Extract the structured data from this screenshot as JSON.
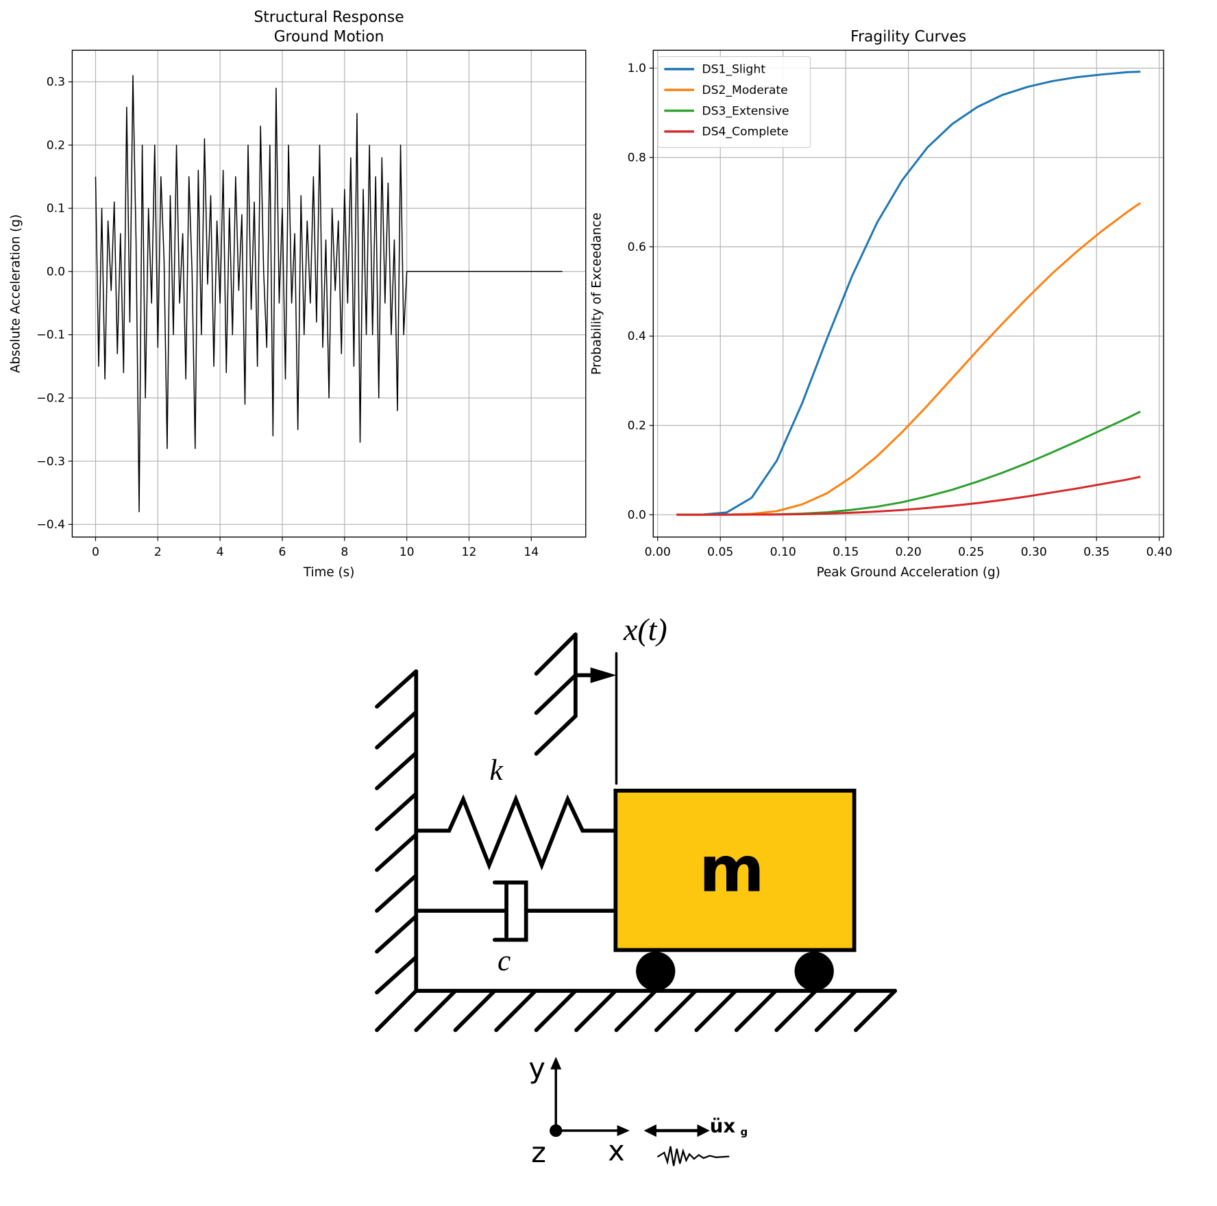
{
  "chart_data": [
    {
      "type": "line",
      "title": "Structural Response",
      "subtitle": "Ground Motion",
      "x_label": "Time (s)",
      "y_label": "Absolute Acceleration (g)",
      "x": [
        0,
        0.1,
        0.2,
        0.3,
        0.4,
        0.5,
        0.6,
        0.7,
        0.8,
        0.9,
        1.0,
        1.1,
        1.2,
        1.3,
        1.4,
        1.5,
        1.6,
        1.7,
        1.8,
        1.9,
        2.0,
        2.1,
        2.2,
        2.3,
        2.4,
        2.5,
        2.6,
        2.7,
        2.8,
        2.9,
        3.0,
        3.1,
        3.2,
        3.3,
        3.4,
        3.5,
        3.6,
        3.7,
        3.8,
        3.9,
        4.0,
        4.1,
        4.2,
        4.3,
        4.4,
        4.5,
        4.6,
        4.7,
        4.8,
        4.9,
        5.0,
        5.1,
        5.2,
        5.3,
        5.4,
        5.5,
        5.6,
        5.7,
        5.8,
        5.9,
        6.0,
        6.1,
        6.2,
        6.3,
        6.4,
        6.5,
        6.6,
        6.7,
        6.8,
        6.9,
        7.0,
        7.1,
        7.2,
        7.3,
        7.4,
        7.5,
        7.6,
        7.7,
        7.8,
        7.9,
        8.0,
        8.1,
        8.2,
        8.3,
        8.4,
        8.5,
        8.6,
        8.7,
        8.8,
        8.9,
        9.0,
        9.1,
        9.2,
        9.3,
        9.4,
        9.5,
        9.6,
        9.7,
        9.8,
        9.9,
        10.0,
        15
      ],
      "series": [
        {
          "color": "#000000",
          "values": [
            0.15,
            -0.15,
            0.1,
            -0.17,
            0.08,
            -0.03,
            0.11,
            -0.13,
            0.06,
            -0.16,
            0.26,
            -0.08,
            0.31,
            0.05,
            -0.38,
            0.2,
            -0.2,
            0.1,
            -0.05,
            0.2,
            -0.12,
            0.15,
            0.02,
            -0.28,
            0.12,
            -0.1,
            0.2,
            -0.05,
            0.06,
            -0.17,
            0.15,
            0.0,
            -0.28,
            0.16,
            -0.1,
            0.21,
            -0.02,
            0.12,
            -0.15,
            0.08,
            -0.05,
            0.16,
            -0.16,
            0.1,
            -0.1,
            0.15,
            -0.03,
            0.09,
            -0.21,
            0.2,
            -0.06,
            0.11,
            -0.15,
            0.23,
            0.0,
            -0.12,
            0.2,
            -0.26,
            0.29,
            -0.05,
            0.1,
            -0.17,
            0.2,
            -0.05,
            0.06,
            -0.25,
            0.12,
            -0.1,
            0.08,
            -0.05,
            0.15,
            -0.08,
            0.2,
            -0.12,
            0.05,
            -0.2,
            0.1,
            -0.03,
            0.08,
            -0.13,
            0.13,
            -0.05,
            0.18,
            -0.15,
            0.25,
            -0.27,
            0.13,
            -0.1,
            0.2,
            -0.1,
            0.15,
            -0.2,
            0.18,
            -0.05,
            0.14,
            -0.1,
            0.05,
            -0.22,
            0.2,
            -0.1,
            0.0,
            0.0
          ]
        }
      ],
      "xlim": [
        -0.75,
        15.75
      ],
      "ylim": [
        -0.42,
        0.35
      ],
      "xticks": [
        0,
        2,
        4,
        6,
        8,
        10,
        12,
        14
      ],
      "yticks": [
        {
          "value": -0.4,
          "label": "−0.4"
        },
        {
          "value": -0.3,
          "label": "−0.3"
        },
        {
          "value": -0.2,
          "label": "−0.2"
        },
        {
          "value": -0.1,
          "label": "−0.1"
        },
        {
          "value": 0,
          "label": "0.0"
        },
        0.1,
        0.2,
        0.3
      ],
      "grid": true
    },
    {
      "type": "line",
      "title": "Fragility Curves",
      "x_label": "Peak Ground Acceleration (g)",
      "y_label": "Probability of Exceedance",
      "x": [
        0.015,
        0.035,
        0.055,
        0.075,
        0.095,
        0.115,
        0.135,
        0.155,
        0.175,
        0.195,
        0.215,
        0.235,
        0.255,
        0.275,
        0.295,
        0.315,
        0.335,
        0.355,
        0.375,
        0.385
      ],
      "series": [
        {
          "name": "DS1_Slight",
          "color": "#1f77b4",
          "values": [
            0,
            0.0001,
            0.005,
            0.038,
            0.121,
            0.248,
            0.394,
            0.534,
            0.654,
            0.749,
            0.822,
            0.875,
            0.913,
            0.94,
            0.958,
            0.971,
            0.98,
            0.986,
            0.991,
            0.992
          ]
        },
        {
          "name": "DS2_Moderate",
          "color": "#ff7f0e",
          "values": [
            0,
            0,
            0.0002,
            0.002,
            0.008,
            0.023,
            0.048,
            0.085,
            0.131,
            0.185,
            0.244,
            0.306,
            0.368,
            0.428,
            0.486,
            0.541,
            0.591,
            0.637,
            0.679,
            0.698
          ]
        },
        {
          "name": "DS3_Extensive",
          "color": "#2ca02c",
          "values": [
            0,
            0,
            0,
            0.0002,
            0.0008,
            0.0024,
            0.0055,
            0.011,
            0.018,
            0.028,
            0.041,
            0.056,
            0.074,
            0.094,
            0.116,
            0.14,
            0.165,
            0.191,
            0.217,
            0.231
          ]
        },
        {
          "name": "DS4_Complete",
          "color": "#d62728",
          "values": [
            0,
            0,
            0,
            0.0002,
            0.0005,
            0.0012,
            0.0025,
            0.0044,
            0.0071,
            0.0105,
            0.015,
            0.02,
            0.026,
            0.033,
            0.041,
            0.05,
            0.059,
            0.069,
            0.079,
            0.085
          ]
        }
      ],
      "xlim": [
        -0.0035,
        0.4035
      ],
      "ylim": [
        -0.05,
        1.04
      ],
      "xticks": [
        {
          "value": 0,
          "label": "0.00"
        },
        0.05,
        {
          "value": 0.1,
          "label": "0.10"
        },
        0.15,
        {
          "value": 0.2,
          "label": "0.20"
        },
        0.25,
        {
          "value": 0.3,
          "label": "0.30"
        },
        0.35,
        {
          "value": 0.4,
          "label": "0.40"
        }
      ],
      "yticks": [
        {
          "value": 0,
          "label": "0.0"
        },
        0.2,
        0.4,
        0.6,
        0.8,
        {
          "value": 1,
          "label": "1.0"
        }
      ],
      "grid": true,
      "legend": "upper left"
    }
  ],
  "diagram": {
    "labels": {
      "displacement": "x(t)",
      "stiffness": "k",
      "damping": "c",
      "mass": "m",
      "y_axis": "y",
      "x_axis": "x",
      "z_axis": "z",
      "ground_accel": "üx",
      "ground_accel_sub": "g"
    }
  }
}
